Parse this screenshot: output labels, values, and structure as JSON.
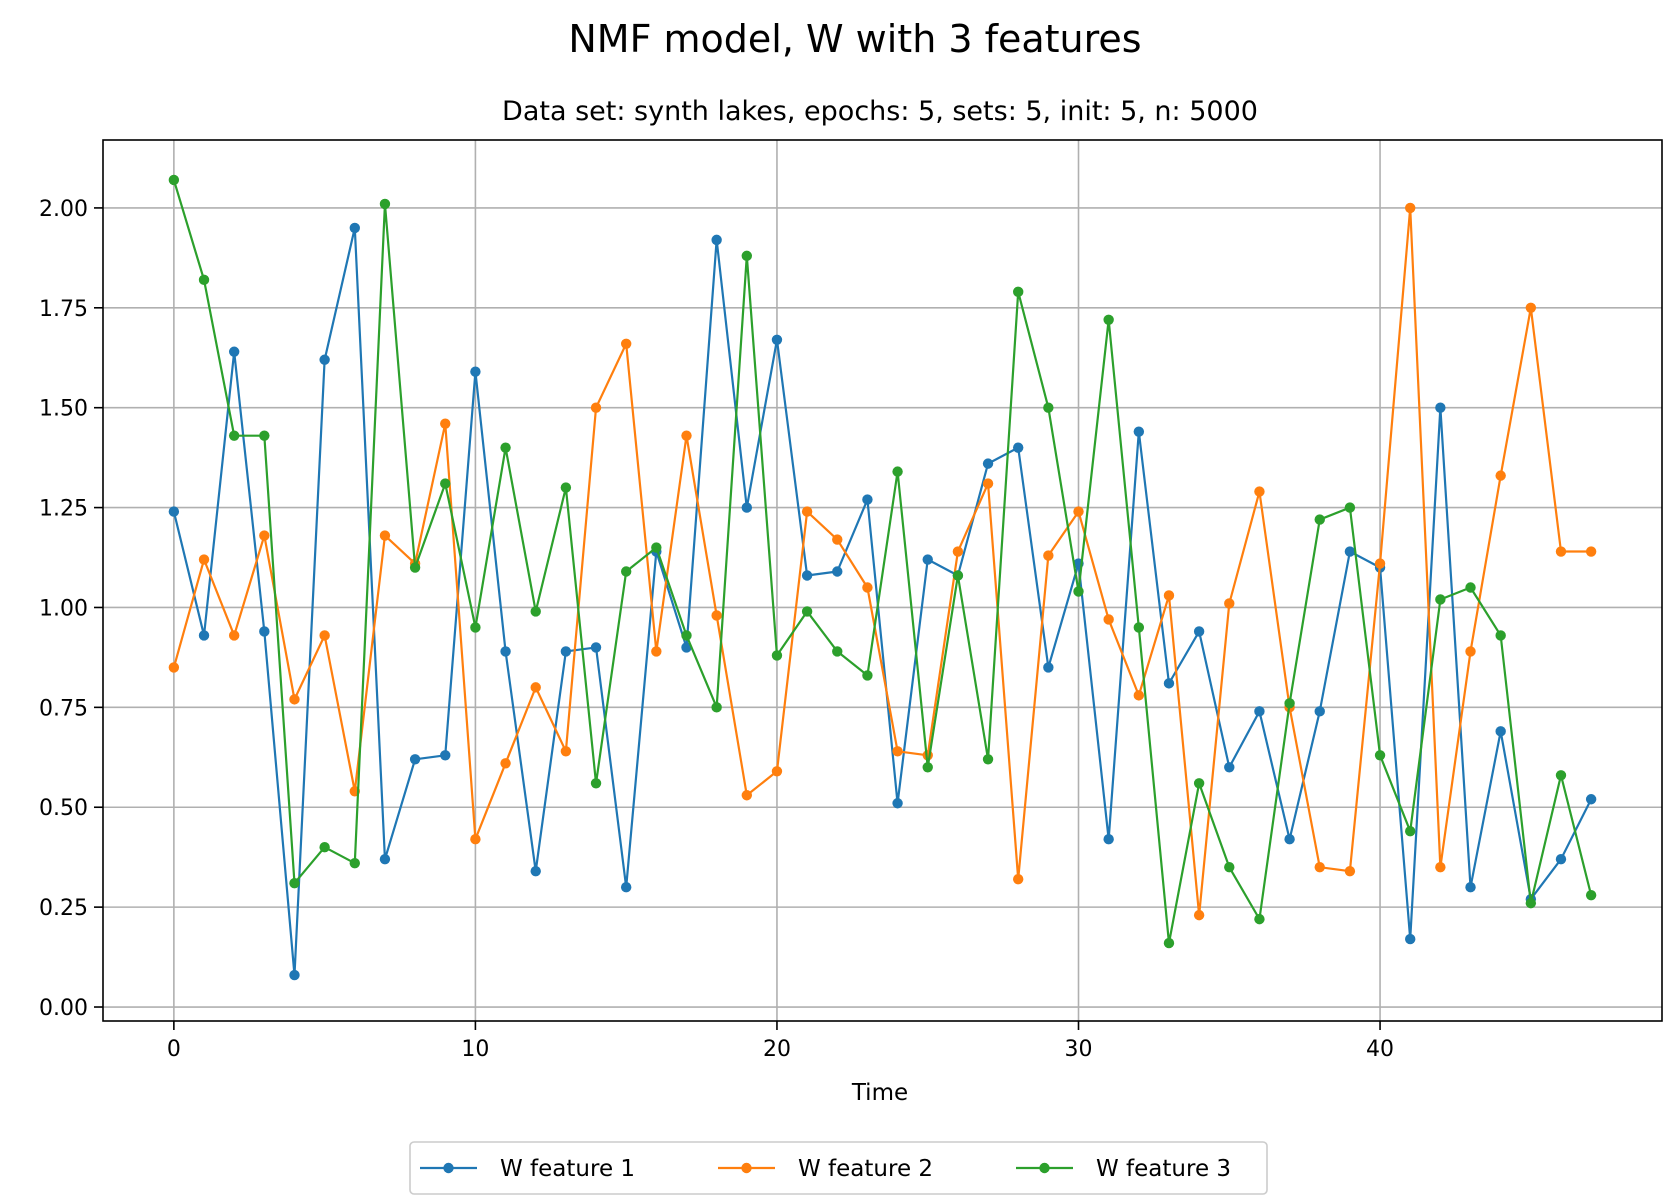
{
  "chart_data": {
    "type": "line",
    "title": "NMF model, W with 3 features",
    "subtitle": "Data set: synth lakes, epochs: 5, sets: 5, init: 5, n: 5000",
    "xlabel": "Time",
    "ylabel": "",
    "xlim": [
      -2.35,
      49.35
    ],
    "ylim": [
      -0.035,
      2.17
    ],
    "xticks": [
      0,
      10,
      20,
      30,
      40
    ],
    "yticks": [
      0.0,
      0.25,
      0.5,
      0.75,
      1.0,
      1.25,
      1.5,
      1.75,
      2.0
    ],
    "ytick_labels": [
      "0.00",
      "0.25",
      "0.50",
      "0.75",
      "1.00",
      "1.25",
      "1.50",
      "1.75",
      "2.00"
    ],
    "grid": true,
    "legend_position": "bottom-center, below plot",
    "x": [
      0,
      1,
      2,
      3,
      4,
      5,
      6,
      7,
      8,
      9,
      10,
      11,
      12,
      13,
      14,
      15,
      16,
      17,
      18,
      19,
      20,
      21,
      22,
      23,
      24,
      25,
      26,
      27,
      28,
      29,
      30,
      31,
      32,
      33,
      34,
      35,
      36,
      37,
      38,
      39,
      40,
      41,
      42,
      43,
      44,
      45,
      46,
      47
    ],
    "series": [
      {
        "name": "W feature 1",
        "color": "#1f77b4",
        "values": [
          1.24,
          0.93,
          1.64,
          0.94,
          0.08,
          1.62,
          1.95,
          0.37,
          0.62,
          0.63,
          1.59,
          0.89,
          0.34,
          0.89,
          0.9,
          0.3,
          1.14,
          0.9,
          1.92,
          1.25,
          1.67,
          1.08,
          1.09,
          1.27,
          0.51,
          1.12,
          1.08,
          1.36,
          1.4,
          0.85,
          1.11,
          0.42,
          1.44,
          0.81,
          0.94,
          0.6,
          0.74,
          0.42,
          0.74,
          1.14,
          1.1,
          0.17,
          1.5,
          0.3,
          0.69,
          0.27,
          0.37,
          0.52
        ]
      },
      {
        "name": "W feature 2",
        "color": "#ff7f0e",
        "values": [
          0.85,
          1.12,
          0.93,
          1.18,
          0.77,
          0.93,
          0.54,
          1.18,
          1.11,
          1.46,
          0.42,
          0.61,
          0.8,
          0.64,
          1.5,
          1.66,
          0.89,
          1.43,
          0.98,
          0.53,
          0.59,
          1.24,
          1.17,
          1.05,
          0.64,
          0.63,
          1.14,
          1.31,
          0.32,
          1.13,
          1.24,
          0.97,
          0.78,
          1.03,
          0.23,
          1.01,
          1.29,
          0.75,
          0.35,
          0.34,
          1.11,
          2.0,
          0.35,
          0.89,
          1.33,
          1.75,
          1.14,
          1.14
        ]
      },
      {
        "name": "W feature 3",
        "color": "#2ca02c",
        "values": [
          2.07,
          1.82,
          1.43,
          1.43,
          0.31,
          0.4,
          0.36,
          2.01,
          1.1,
          1.31,
          0.95,
          1.4,
          0.99,
          1.3,
          0.56,
          1.09,
          1.15,
          0.93,
          0.75,
          1.88,
          0.88,
          0.99,
          0.89,
          0.83,
          1.34,
          0.6,
          1.08,
          0.62,
          1.79,
          1.5,
          1.04,
          1.72,
          0.95,
          0.16,
          0.56,
          0.35,
          0.22,
          0.76,
          1.22,
          1.25,
          0.63,
          0.44,
          1.02,
          1.05,
          0.93,
          0.26,
          0.58,
          0.28
        ]
      }
    ]
  }
}
